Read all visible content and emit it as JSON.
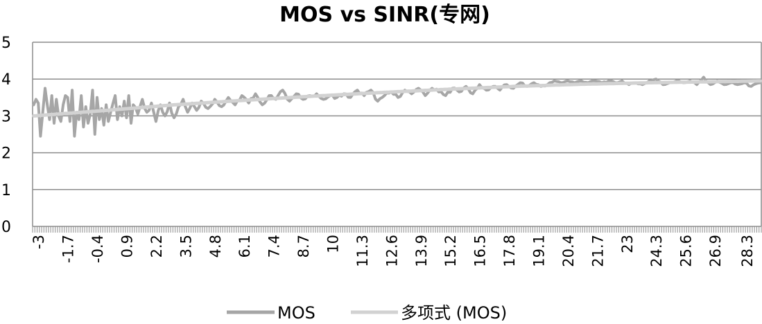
{
  "chart_data": {
    "type": "line",
    "title": "MOS vs SINR(专网)",
    "xlabel": "",
    "ylabel": "",
    "ylim": [
      0,
      5
    ],
    "yticks": [
      "0",
      "1",
      "2",
      "3",
      "4",
      "5"
    ],
    "x_tick_labels": [
      "-3",
      "-1.7",
      "-0.4",
      "0.9",
      "2.2",
      "3.5",
      "4.8",
      "6.1",
      "7.4",
      "8.7",
      "10",
      "11.3",
      "12.6",
      "13.9",
      "15.2",
      "16.5",
      "17.8",
      "19.1",
      "20.4",
      "21.7",
      "23",
      "24.3",
      "25.6",
      "26.9",
      "28.3"
    ],
    "x_step": 0.1,
    "x_start": -3.2,
    "x_end": 28.9,
    "grid": true,
    "legend": "bottom",
    "series": [
      {
        "name": "MOS",
        "color": "#a6a6a6",
        "keypoints": [
          [
            -3.2,
            3.3
          ],
          [
            -3.1,
            3.45
          ],
          [
            -3.0,
            3.35
          ],
          [
            -2.9,
            2.45
          ],
          [
            -2.8,
            3.1
          ],
          [
            -2.7,
            3.75
          ],
          [
            -2.6,
            3.3
          ],
          [
            -2.5,
            2.9
          ],
          [
            -2.4,
            3.55
          ],
          [
            -2.3,
            2.8
          ],
          [
            -2.2,
            3.45
          ],
          [
            -2.1,
            3.0
          ],
          [
            -2.0,
            2.85
          ],
          [
            -1.9,
            3.3
          ],
          [
            -1.8,
            3.55
          ],
          [
            -1.75,
            1.7
          ],
          [
            -1.7,
            3.5
          ],
          [
            -1.6,
            2.85
          ],
          [
            -1.5,
            3.7
          ],
          [
            -1.4,
            2.45
          ],
          [
            -1.3,
            3.1
          ],
          [
            -1.2,
            2.9
          ],
          [
            -1.1,
            3.55
          ],
          [
            -1.0,
            2.7
          ],
          [
            -0.9,
            3.25
          ],
          [
            -0.8,
            2.8
          ],
          [
            -0.7,
            3.05
          ],
          [
            -0.6,
            3.7
          ],
          [
            -0.5,
            2.5
          ],
          [
            -0.4,
            3.5
          ],
          [
            -0.3,
            2.9
          ],
          [
            -0.2,
            3.2
          ],
          [
            -0.1,
            2.75
          ],
          [
            0.0,
            3.3
          ],
          [
            0.1,
            2.85
          ],
          [
            0.2,
            3.1
          ],
          [
            0.4,
            3.55
          ],
          [
            0.5,
            2.9
          ],
          [
            0.6,
            3.25
          ],
          [
            0.7,
            3.0
          ],
          [
            0.8,
            3.4
          ],
          [
            0.9,
            2.95
          ],
          [
            1.0,
            3.55
          ],
          [
            1.1,
            2.8
          ],
          [
            1.2,
            3.3
          ],
          [
            1.4,
            3.05
          ],
          [
            1.6,
            3.45
          ],
          [
            1.8,
            3.1
          ],
          [
            2.0,
            3.35
          ],
          [
            2.2,
            2.85
          ],
          [
            2.4,
            3.3
          ],
          [
            2.6,
            3.0
          ],
          [
            2.8,
            3.35
          ],
          [
            3.0,
            2.95
          ],
          [
            3.2,
            3.25
          ],
          [
            3.4,
            3.45
          ],
          [
            3.6,
            3.1
          ],
          [
            3.8,
            3.35
          ],
          [
            4.0,
            3.15
          ],
          [
            4.2,
            3.4
          ],
          [
            4.5,
            3.2
          ],
          [
            4.8,
            3.45
          ],
          [
            5.1,
            3.25
          ],
          [
            5.4,
            3.5
          ],
          [
            5.7,
            3.3
          ],
          [
            6.0,
            3.55
          ],
          [
            6.3,
            3.35
          ],
          [
            6.6,
            3.6
          ],
          [
            6.9,
            3.3
          ],
          [
            7.2,
            3.55
          ],
          [
            7.5,
            3.45
          ],
          [
            7.8,
            3.7
          ],
          [
            8.1,
            3.4
          ],
          [
            8.4,
            3.6
          ],
          [
            8.7,
            3.45
          ],
          [
            9.0,
            3.55
          ],
          [
            9.3,
            3.6
          ],
          [
            9.6,
            3.45
          ],
          [
            9.9,
            3.55
          ],
          [
            10.2,
            3.5
          ],
          [
            10.5,
            3.6
          ],
          [
            10.8,
            3.5
          ],
          [
            11.1,
            3.7
          ],
          [
            11.4,
            3.55
          ],
          [
            11.7,
            3.7
          ],
          [
            12.0,
            3.4
          ],
          [
            12.3,
            3.55
          ],
          [
            12.6,
            3.65
          ],
          [
            12.9,
            3.5
          ],
          [
            13.2,
            3.7
          ],
          [
            13.5,
            3.6
          ],
          [
            13.8,
            3.75
          ],
          [
            14.1,
            3.55
          ],
          [
            14.4,
            3.75
          ],
          [
            14.7,
            3.65
          ],
          [
            15.0,
            3.55
          ],
          [
            15.3,
            3.75
          ],
          [
            15.6,
            3.65
          ],
          [
            15.9,
            3.8
          ],
          [
            16.2,
            3.6
          ],
          [
            16.5,
            3.85
          ],
          [
            16.8,
            3.7
          ],
          [
            17.1,
            3.8
          ],
          [
            17.4,
            3.7
          ],
          [
            17.7,
            3.85
          ],
          [
            18.0,
            3.75
          ],
          [
            18.3,
            3.9
          ],
          [
            18.6,
            3.8
          ],
          [
            18.9,
            3.9
          ],
          [
            19.2,
            3.8
          ],
          [
            19.5,
            3.85
          ],
          [
            19.8,
            3.95
          ],
          [
            20.1,
            3.9
          ],
          [
            20.4,
            3.95
          ],
          [
            20.7,
            3.9
          ],
          [
            21.0,
            3.95
          ],
          [
            21.3,
            3.9
          ],
          [
            21.6,
            3.95
          ],
          [
            21.9,
            3.9
          ],
          [
            22.2,
            3.95
          ],
          [
            22.5,
            3.9
          ],
          [
            22.8,
            3.95
          ],
          [
            23.1,
            3.85
          ],
          [
            23.4,
            3.9
          ],
          [
            23.7,
            3.85
          ],
          [
            24.0,
            3.95
          ],
          [
            24.3,
            4.0
          ],
          [
            24.6,
            3.85
          ],
          [
            24.9,
            3.9
          ],
          [
            25.2,
            3.95
          ],
          [
            25.5,
            3.9
          ],
          [
            25.8,
            3.95
          ],
          [
            26.1,
            3.85
          ],
          [
            26.4,
            4.05
          ],
          [
            26.7,
            3.85
          ],
          [
            27.0,
            3.95
          ],
          [
            27.3,
            3.85
          ],
          [
            27.6,
            3.9
          ],
          [
            27.9,
            3.85
          ],
          [
            28.2,
            3.9
          ],
          [
            28.5,
            3.8
          ],
          [
            28.9,
            3.9
          ]
        ]
      },
      {
        "name": "多项式 (MOS)",
        "color": "#d2d2d2",
        "type": "trendline",
        "keypoints": [
          [
            -3.2,
            3.0
          ],
          [
            0.0,
            3.15
          ],
          [
            3.0,
            3.3
          ],
          [
            6.0,
            3.42
          ],
          [
            9.0,
            3.53
          ],
          [
            12.0,
            3.63
          ],
          [
            15.0,
            3.72
          ],
          [
            18.0,
            3.8
          ],
          [
            21.0,
            3.86
          ],
          [
            24.0,
            3.9
          ],
          [
            27.0,
            3.93
          ],
          [
            28.9,
            3.95
          ]
        ]
      }
    ]
  }
}
